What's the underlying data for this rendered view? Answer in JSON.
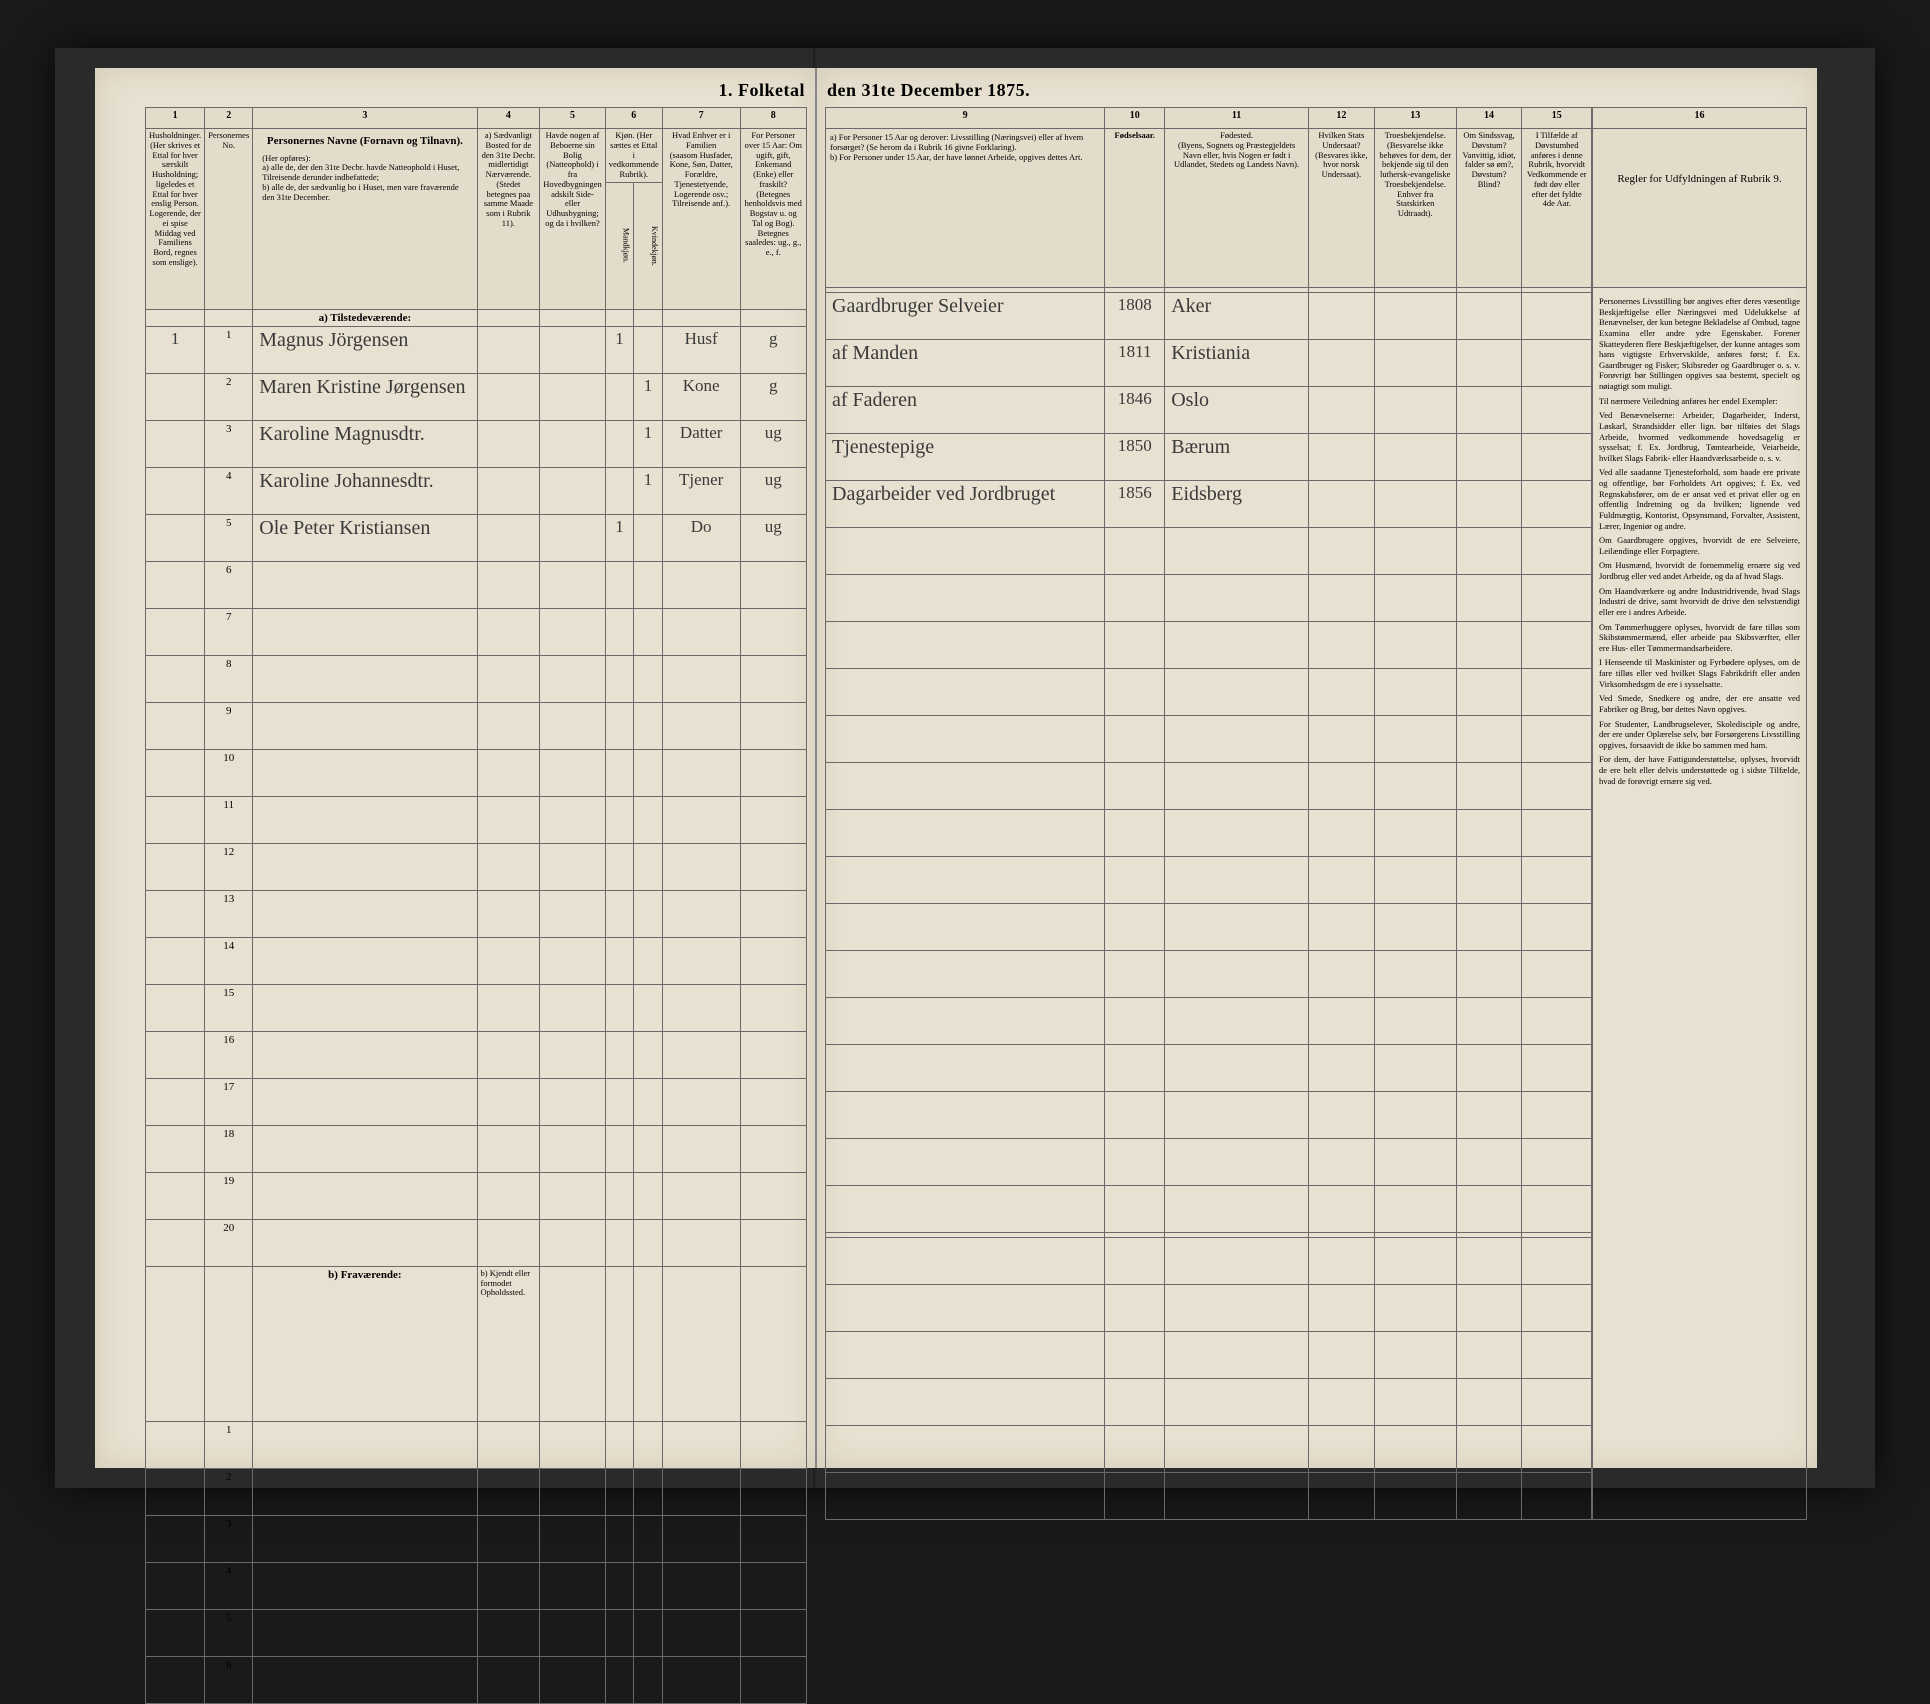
{
  "title_left": "1. Folketal",
  "title_right": "den 31te December 1875.",
  "col_numbers_left": [
    "1",
    "2",
    "3",
    "4",
    "5",
    "6",
    "7",
    "8"
  ],
  "col_numbers_right": [
    "9",
    "10",
    "11",
    "12",
    "13",
    "14",
    "15",
    "16"
  ],
  "headers_left": {
    "c1": "Husholdninger. (Her skrives et Ettal for hver særskilt Husholdning; ligeledes et Ettal for hver enslig Person. Logerende, der ei spise Middag ved Familiens Bord, regnes som enslige).",
    "c2": "Personernes No.",
    "c3_title": "Personernes Navne (Fornavn og Tilnavn).",
    "c3_body": "(Her opføres):\na) alle de, der den 31te Decbr. havde Natteophold i Huset, Tilreisende derunder indbefattede;\nb) alle de, der sædvanlig bo i Huset, men vare fraværende den 31te December.",
    "c4": "a) Sædvanligt Bosted for de den 31te Decbr. midlertidigt Nærværende.\n(Stedet betegnes paa samme Maade som i Rubrik 11).",
    "c5": "Havde nogen af Beboerne sin Bolig (Natteophold) i fra Hovedbygningen adskilt Side- eller Udhusbygning; og da i hvilken?",
    "c6": "Kjøn. (Her sættes et Ettal i vedkommende Rubrik).",
    "c6a": "Mandkjøn.",
    "c6b": "Kvindekjøn.",
    "c7": "Hvad Enhver er i Familien\n(saasom Husfader, Kone, Søn, Datter, Forældre, Tjenestetyende, Logerende osv.; Tilreisende anf.).",
    "c8": "For Personer over 15 Aar: Om ugift, gift, Enkemand (Enke) eller fraskilt? (Betegnes henholdsvis med Bogstav u. og Tal og Bog).\nBetegnes saaledes: ug., g., e., f."
  },
  "headers_right": {
    "c9": "a) For Personer 15 Aar og derover: Livsstilling (Næringsvei) eller af hvem forsørget? (Se herom da i Rubrik 16 givne Forklaring).\nb) For Personer under 15 Aar, der have lønnet Arbeide, opgives dettes Art.",
    "c10": "Fødselsaar.",
    "c11": "Fødested.\n(Byens, Sognets og Præstegjeldets Navn eller, hvis Nogen er født i Udlandet, Stedets og Landets Navn).",
    "c12": "Hvilken Stats Undersaat?\n(Besvares ikke, hvor norsk Undersaat).",
    "c13": "Troesbekjendelse. (Besvarelse ikke behøves for dem, der bekjende sig til den luthersk-evangeliske Troesbekjendelse. Enhver fra Statskirken Udtraadt).",
    "c14": "Om Sindssvag, Døvstum? Vanvittig, idiøt, falder sø øm?, Døvstum? Blind?",
    "c15": "I Tilfælde af Døvstumhed anføres i denne Rubrik, hvorvidt Vedkommende er født døv eller efter det fyldte 4de Aar.",
    "c16_title": "Regler for Udfyldningen af Rubrik 9."
  },
  "section_a": "a) Tilstedeværende:",
  "section_b": "b) Fraværende:",
  "section_b_col4": "b) Kjendt eller formodet Opholdssted.",
  "rows": [
    {
      "hh": "1",
      "pn": "1",
      "name": "Magnus Jörgensen",
      "c4": "",
      "c5": "",
      "m": "1",
      "k": "",
      "fam": "Husf",
      "civ": "g",
      "occ": "Gaardbruger Selveier",
      "year": "1808",
      "place": "Aker"
    },
    {
      "hh": "",
      "pn": "2",
      "name": "Maren Kristine Jørgensen",
      "c4": "",
      "c5": "",
      "m": "",
      "k": "1",
      "fam": "Kone",
      "civ": "g",
      "occ": "af Manden",
      "year": "1811",
      "place": "Kristiania"
    },
    {
      "hh": "",
      "pn": "3",
      "name": "Karoline Magnusdtr.",
      "c4": "",
      "c5": "",
      "m": "",
      "k": "1",
      "fam": "Datter",
      "civ": "ug",
      "occ": "af Faderen",
      "year": "1846",
      "place": "Oslo"
    },
    {
      "hh": "",
      "pn": "4",
      "name": "Karoline Johannesdtr.",
      "c4": "",
      "c5": "",
      "m": "",
      "k": "1",
      "fam": "Tjener",
      "civ": "ug",
      "occ": "Tjenestepige",
      "year": "1850",
      "place": "Bærum"
    },
    {
      "hh": "",
      "pn": "5",
      "name": "Ole Peter Kristiansen",
      "c4": "",
      "c5": "",
      "m": "1",
      "k": "",
      "fam": "Do",
      "civ": "ug",
      "occ": "Dagarbeider ved Jordbruget",
      "year": "1856",
      "place": "Eidsberg"
    }
  ],
  "empty_a": [
    "6",
    "7",
    "8",
    "9",
    "10",
    "11",
    "12",
    "13",
    "14",
    "15",
    "16",
    "17",
    "18",
    "19",
    "20"
  ],
  "empty_b": [
    "1",
    "2",
    "3",
    "4",
    "5",
    "6"
  ],
  "regler_text": [
    "Personernes Livsstilling bør angives efter deres væsentlige Beskjæftigelse eller Næringsvei med Udelukkelse af Benævnelser, der kun betegne Bekladelse af Ombud, tagne Examina eller andre ydre Egenskaber. Forener Skatteyderen flere Beskjæftigelser, der kunne antages som hans vigtigste Erhvervskilde, anføres først; f. Ex. Gaardbruger og Fisker; Skibsreder og Gaardbruger o. s. v. Forøvrigt bør Stillingen opgives saa bestemt, specielt og nøiagtigt som muligt.",
    "Til nærmere Veiledning anføres her endel Exempler:",
    "Ved Benævnelserne: Arbeider, Dagarbeider, Inderst, Løskarl, Strandsidder eller lign. bør tilføies det Slags Arbeide, hvormed vedkommende hovedsagelig er sysselsat; f. Ex. Jordbrug, Tømtearbeide, Veiarbeide, hvilket Slags Fabrik- eller Haandværksarbeide o. s. v.",
    "Ved alle saadanne Tjenesteforhold, som baade ere private og offentlige, bør Forholdets Art opgives; f. Ex. ved Regnskabsfører, om de er ansat ved et privat eller og en offentlig Indretning og da hvilken; lignende ved Fuldmægtig, Kontorist, Opsynsmand, Forvalter, Assistent, Lærer, Ingeniør og andre.",
    "Om Gaardbrugere opgives, hvorvidt de ere Selveiere, Leilændinge eller Forpagtere.",
    "Om Husmænd, hvorvidt de fornemmelig ernære sig ved Jordbrug eller ved andet Arbeide, og da af hvad Slags.",
    "Om Haandværkere og andre Industridrivende, hvad Slags Industri de drive, samt hvorvidt de drive den selvstændigt eller ere i andres Arbeide.",
    "Om Tømmerhuggere oplyses, hvorvidt de fare tilløs som Skibstømmermænd, eller arbeide paa Skibsværfter, eller ere Hus- eller Tømmermandsarbeidere.",
    "I Henseende til Maskinister og Fyrbødere oplyses, om de fare tilløs eller ved hvilket Slags Fabrikdrift eller anden Virksomhedsgrn de ere i sysselsatte.",
    "Ved Smede, Snedkere og andre, der ere ansatte ved Fabriker og Brug, bør dettes Navn opgives.",
    "For Studenter, Landbrugselever, Skoledisciple og andre, der ere under Oplærelse selv, bør Forsørgerens Livsstilling opgives, forsaavidt de ikke bo sammen med ham.",
    "For dem, der have Fattigunderstøttelse, oplyses, hvorvidt de ere helt eller delvis understøttede og i sidste Tilfælde, hvad de forøvrigt ernære sig ved."
  ]
}
